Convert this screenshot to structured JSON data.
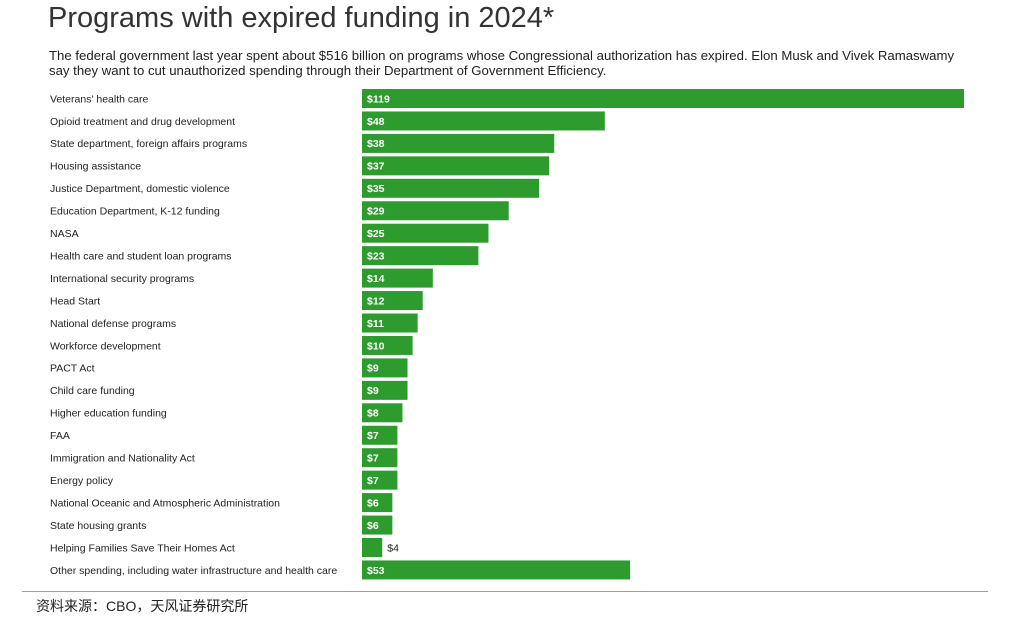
{
  "title": "Programs with expired funding in 2024*",
  "subtitle": "The federal government last year spent about $516 billion on programs whose Congressional authorization has expired. Elon Musk and Vivek Ramaswamy say they want to cut unauthorized spending through their Department of Government Efficiency.",
  "source": "资料来源：CBO，天风证券研究所",
  "colors": {
    "bar": "#2e9b2e",
    "label_inside": "#ffffff",
    "label_outside": "#222222",
    "rule": "#c9955a"
  },
  "chart_data": {
    "type": "bar",
    "orientation": "horizontal",
    "title": "Programs with expired funding in 2024*",
    "xlabel": "",
    "ylabel": "",
    "unit": "$ billion",
    "xlim": [
      0,
      119
    ],
    "categories": [
      "Veterans' health care",
      "Opioid treatment and drug development",
      "State department, foreign affairs programs",
      "Housing assistance",
      "Justice Department, domestic violence",
      "Education Department, K-12 funding",
      "NASA",
      "Health care and student loan programs",
      "International security programs",
      "Head Start",
      "National defense programs",
      "Workforce development",
      "PACT Act",
      "Child care funding",
      "Higher education funding",
      "FAA",
      "Immigration and Nationality Act",
      "Energy policy",
      "National Oceanic and Atmospheric Administration",
      "State housing grants",
      "Helping Families Save Their Homes Act",
      "Other spending, including water infrastructure and health care"
    ],
    "values": [
      119,
      48,
      38,
      37,
      35,
      29,
      25,
      23,
      14,
      12,
      11,
      10,
      9,
      9,
      8,
      7,
      7,
      7,
      6,
      6,
      4,
      53
    ],
    "labels": [
      "$119",
      "$48",
      "$38",
      "$37",
      "$35",
      "$29",
      "$25",
      "$23",
      "$14",
      "$12",
      "$11",
      "$10",
      "$9",
      "$9",
      "$8",
      "$7",
      "$7",
      "$7",
      "$6",
      "$6",
      "$4",
      "$53"
    ]
  }
}
